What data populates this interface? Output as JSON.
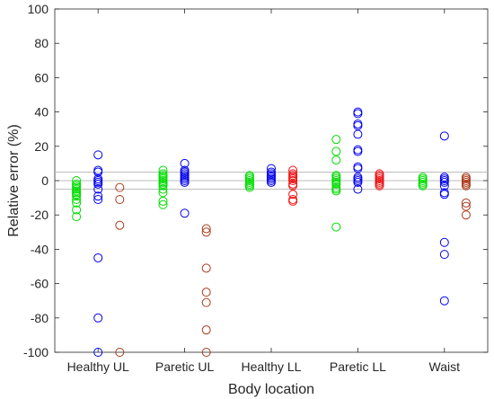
{
  "chart_data": {
    "type": "scatter",
    "xlabel": "Body location",
    "ylabel": "Relative error (%)",
    "ylim": [
      -100,
      100
    ],
    "yticks": [
      -100,
      -80,
      -60,
      -40,
      -20,
      0,
      20,
      40,
      60,
      80,
      100
    ],
    "categories": [
      "Healthy UL",
      "Paretic UL",
      "Healthy LL",
      "Paretic LL",
      "Waist"
    ],
    "reference_lines": [
      5,
      0,
      -5
    ],
    "legend": "none",
    "grid": false,
    "series": [
      {
        "color": "#00dd00",
        "offset": -0.25,
        "points": [
          [
            [
              -2,
              -3,
              -4,
              -5,
              -6,
              -7,
              -8,
              -9,
              -11,
              -13,
              -17,
              -21,
              0
            ]
          ],
          [
            [
              6,
              4,
              3,
              2,
              1,
              0,
              -1,
              -2,
              -3,
              -5,
              -7,
              -12,
              -14
            ]
          ],
          [
            [
              3,
              2,
              1,
              0,
              -1,
              -2,
              -3,
              -4
            ]
          ],
          [
            [
              24,
              17,
              12,
              3,
              2,
              1,
              0,
              -1,
              -2,
              -4,
              -5,
              -6,
              -27
            ]
          ],
          [
            [
              2,
              1,
              0,
              -1,
              -2,
              -3
            ]
          ]
        ]
      },
      {
        "color": "#0000ee",
        "offset": 0,
        "points": [
          [
            [
              15,
              6,
              5,
              1,
              0,
              -1,
              -2,
              -5,
              -9,
              -11,
              -45,
              -80,
              -100
            ]
          ],
          [
            [
              10,
              6,
              5,
              4,
              3,
              2,
              1,
              0,
              -1,
              -19
            ]
          ],
          [
            [
              7,
              5,
              4,
              3,
              2,
              1,
              0,
              -1
            ]
          ],
          [
            [
              40,
              39,
              33,
              32,
              27,
              18,
              17,
              8,
              7,
              2,
              1,
              0,
              -1,
              -5
            ]
          ],
          [
            [
              26,
              2,
              1,
              0,
              -1,
              -3,
              -7,
              -8,
              -36,
              -43,
              -70
            ]
          ]
        ]
      },
      {
        "color": "#aa3a1a",
        "offset": 0.25,
        "points": [
          [
            [
              -4,
              -11,
              -26,
              -100
            ]
          ],
          [
            [
              -28,
              -30,
              -51,
              -65,
              -71,
              -87,
              -100
            ]
          ],
          [],
          [],
          [
            [
              2,
              1,
              0,
              -1,
              -2,
              -3,
              -13,
              -15,
              -20
            ]
          ]
        ]
      },
      {
        "color": "#ee1111",
        "offset": 0.25,
        "points": [
          [],
          [],
          [
            [
              6,
              4,
              3,
              2,
              1,
              0,
              -2,
              -3,
              -8,
              -11,
              -12
            ]
          ],
          [
            [
              4,
              3,
              2,
              1,
              0,
              -1,
              -2,
              -3
            ]
          ],
          []
        ]
      }
    ]
  }
}
